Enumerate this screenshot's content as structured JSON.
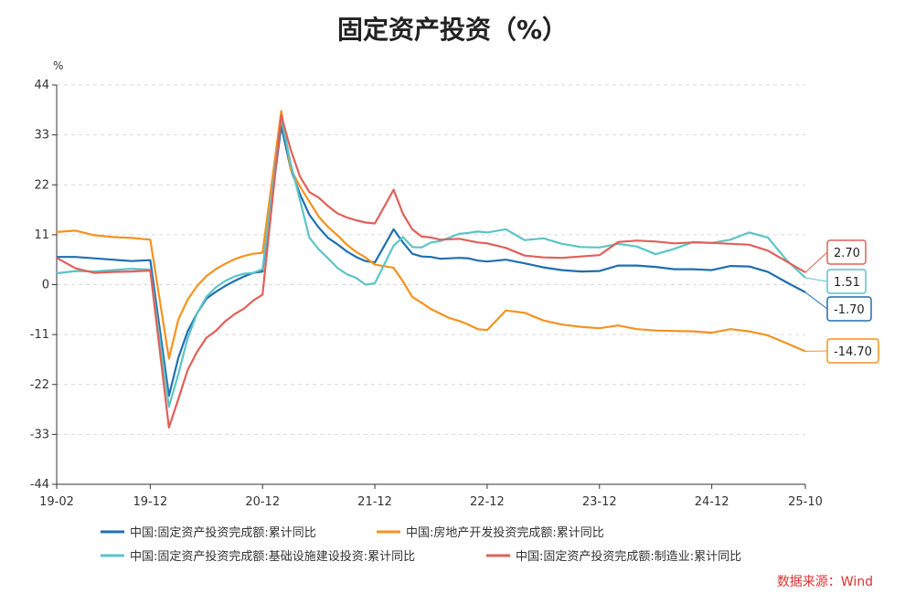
{
  "chart_data": {
    "type": "line",
    "title": "固定资产投资（%）",
    "ylabel": "%",
    "ylim": [
      -44,
      44
    ],
    "yticks": [
      44,
      33,
      22,
      11,
      0,
      -11,
      -22,
      -33,
      -44
    ],
    "x_tick_labels": [
      "19-02",
      "19-12",
      "20-12",
      "21-12",
      "22-12",
      "23-12",
      "24-12",
      "25-10"
    ],
    "x_start": "2019-02",
    "x_end": "2025-10",
    "grid": "horizontal-dashed",
    "legend_position": "bottom",
    "source": "数据来源：Wind",
    "series": [
      {
        "name": "中国:固定资产投资完成额:累计同比",
        "color": "#1f6fb2",
        "end_label": "-1.70",
        "points": [
          [
            "2019-02",
            6.1
          ],
          [
            "2019-04",
            6.1
          ],
          [
            "2019-06",
            5.8
          ],
          [
            "2019-08",
            5.5
          ],
          [
            "2019-10",
            5.2
          ],
          [
            "2019-12",
            5.4
          ],
          [
            "2020-02",
            -24.5
          ],
          [
            "2020-03",
            -16.1
          ],
          [
            "2020-04",
            -10.3
          ],
          [
            "2020-05",
            -6.3
          ],
          [
            "2020-06",
            -3.1
          ],
          [
            "2020-07",
            -1.6
          ],
          [
            "2020-08",
            -0.3
          ],
          [
            "2020-09",
            0.8
          ],
          [
            "2020-10",
            1.8
          ],
          [
            "2020-11",
            2.6
          ],
          [
            "2020-12",
            2.9
          ],
          [
            "2021-02",
            35.0
          ],
          [
            "2021-03",
            25.6
          ],
          [
            "2021-04",
            19.9
          ],
          [
            "2021-05",
            15.4
          ],
          [
            "2021-06",
            12.6
          ],
          [
            "2021-07",
            10.3
          ],
          [
            "2021-08",
            8.9
          ],
          [
            "2021-09",
            7.3
          ],
          [
            "2021-10",
            6.1
          ],
          [
            "2021-11",
            5.2
          ],
          [
            "2021-12",
            4.9
          ],
          [
            "2022-02",
            12.2
          ],
          [
            "2022-03",
            9.3
          ],
          [
            "2022-04",
            6.8
          ],
          [
            "2022-05",
            6.2
          ],
          [
            "2022-06",
            6.1
          ],
          [
            "2022-07",
            5.7
          ],
          [
            "2022-08",
            5.8
          ],
          [
            "2022-09",
            5.9
          ],
          [
            "2022-10",
            5.8
          ],
          [
            "2022-11",
            5.3
          ],
          [
            "2022-12",
            5.1
          ],
          [
            "2023-02",
            5.5
          ],
          [
            "2023-04",
            4.7
          ],
          [
            "2023-06",
            3.8
          ],
          [
            "2023-08",
            3.2
          ],
          [
            "2023-10",
            2.9
          ],
          [
            "2023-12",
            3.0
          ],
          [
            "2024-02",
            4.2
          ],
          [
            "2024-04",
            4.2
          ],
          [
            "2024-06",
            3.9
          ],
          [
            "2024-08",
            3.4
          ],
          [
            "2024-10",
            3.4
          ],
          [
            "2024-12",
            3.2
          ],
          [
            "2025-02",
            4.1
          ],
          [
            "2025-04",
            4.0
          ],
          [
            "2025-06",
            2.8
          ],
          [
            "2025-08",
            0.5
          ],
          [
            "2025-10",
            -1.7
          ]
        ]
      },
      {
        "name": "中国:房地产开发投资完成额:累计同比",
        "color": "#f5921e",
        "end_label": "-14.70",
        "points": [
          [
            "2019-02",
            11.6
          ],
          [
            "2019-04",
            11.9
          ],
          [
            "2019-06",
            10.9
          ],
          [
            "2019-08",
            10.5
          ],
          [
            "2019-10",
            10.3
          ],
          [
            "2019-12",
            9.9
          ],
          [
            "2020-02",
            -16.3
          ],
          [
            "2020-03",
            -7.7
          ],
          [
            "2020-04",
            -3.3
          ],
          [
            "2020-05",
            -0.3
          ],
          [
            "2020-06",
            1.9
          ],
          [
            "2020-07",
            3.4
          ],
          [
            "2020-08",
            4.6
          ],
          [
            "2020-09",
            5.6
          ],
          [
            "2020-10",
            6.3
          ],
          [
            "2020-11",
            6.8
          ],
          [
            "2020-12",
            7.0
          ],
          [
            "2021-02",
            38.3
          ],
          [
            "2021-03",
            25.6
          ],
          [
            "2021-04",
            21.6
          ],
          [
            "2021-05",
            18.3
          ],
          [
            "2021-06",
            15.0
          ],
          [
            "2021-07",
            12.7
          ],
          [
            "2021-08",
            10.9
          ],
          [
            "2021-09",
            8.8
          ],
          [
            "2021-10",
            7.2
          ],
          [
            "2021-11",
            6.0
          ],
          [
            "2021-12",
            4.4
          ],
          [
            "2022-02",
            3.7
          ],
          [
            "2022-03",
            0.7
          ],
          [
            "2022-04",
            -2.7
          ],
          [
            "2022-05",
            -4.0
          ],
          [
            "2022-06",
            -5.4
          ],
          [
            "2022-07",
            -6.4
          ],
          [
            "2022-08",
            -7.4
          ],
          [
            "2022-09",
            -8.0
          ],
          [
            "2022-10",
            -8.8
          ],
          [
            "2022-11",
            -9.8
          ],
          [
            "2022-12",
            -10.0
          ],
          [
            "2023-02",
            -5.7
          ],
          [
            "2023-04",
            -6.2
          ],
          [
            "2023-06",
            -7.9
          ],
          [
            "2023-08",
            -8.8
          ],
          [
            "2023-10",
            -9.3
          ],
          [
            "2023-12",
            -9.6
          ],
          [
            "2024-02",
            -9.0
          ],
          [
            "2024-04",
            -9.8
          ],
          [
            "2024-06",
            -10.1
          ],
          [
            "2024-08",
            -10.2
          ],
          [
            "2024-10",
            -10.3
          ],
          [
            "2024-12",
            -10.6
          ],
          [
            "2025-02",
            -9.8
          ],
          [
            "2025-04",
            -10.3
          ],
          [
            "2025-06",
            -11.2
          ],
          [
            "2025-08",
            -12.9
          ],
          [
            "2025-10",
            -14.7
          ]
        ]
      },
      {
        "name": "中国:固定资产投资完成额:基础设施建设投资:累计同比",
        "color": "#5cc4c6",
        "end_label": "1.51",
        "points": [
          [
            "2019-02",
            2.5
          ],
          [
            "2019-04",
            3.0
          ],
          [
            "2019-06",
            2.9
          ],
          [
            "2019-08",
            3.2
          ],
          [
            "2019-10",
            3.5
          ],
          [
            "2019-12",
            3.3
          ],
          [
            "2020-02",
            -26.9
          ],
          [
            "2020-03",
            -19.7
          ],
          [
            "2020-04",
            -11.8
          ],
          [
            "2020-05",
            -6.3
          ],
          [
            "2020-06",
            -2.7
          ],
          [
            "2020-07",
            -0.6
          ],
          [
            "2020-08",
            0.8
          ],
          [
            "2020-09",
            1.8
          ],
          [
            "2020-10",
            2.4
          ],
          [
            "2020-11",
            2.6
          ],
          [
            "2020-12",
            3.4
          ],
          [
            "2021-02",
            36.6
          ],
          [
            "2021-03",
            26.8
          ],
          [
            "2021-04",
            18.6
          ],
          [
            "2021-05",
            10.4
          ],
          [
            "2021-06",
            7.8
          ],
          [
            "2021-07",
            5.8
          ],
          [
            "2021-08",
            3.7
          ],
          [
            "2021-09",
            2.3
          ],
          [
            "2021-10",
            1.5
          ],
          [
            "2021-11",
            0.0
          ],
          [
            "2021-12",
            0.3
          ],
          [
            "2022-02",
            8.6
          ],
          [
            "2022-03",
            10.5
          ],
          [
            "2022-04",
            8.3
          ],
          [
            "2022-05",
            8.2
          ],
          [
            "2022-06",
            9.3
          ],
          [
            "2022-07",
            9.6
          ],
          [
            "2022-08",
            10.4
          ],
          [
            "2022-09",
            11.2
          ],
          [
            "2022-10",
            11.4
          ],
          [
            "2022-11",
            11.7
          ],
          [
            "2022-12",
            11.5
          ],
          [
            "2023-02",
            12.2
          ],
          [
            "2023-04",
            9.8
          ],
          [
            "2023-06",
            10.2
          ],
          [
            "2023-08",
            9.0
          ],
          [
            "2023-10",
            8.3
          ],
          [
            "2023-12",
            8.2
          ],
          [
            "2024-02",
            9.0
          ],
          [
            "2024-04",
            8.4
          ],
          [
            "2024-06",
            6.7
          ],
          [
            "2024-08",
            7.9
          ],
          [
            "2024-10",
            9.4
          ],
          [
            "2024-12",
            9.2
          ],
          [
            "2025-02",
            9.9
          ],
          [
            "2025-04",
            11.5
          ],
          [
            "2025-06",
            10.4
          ],
          [
            "2025-08",
            5.4
          ],
          [
            "2025-10",
            1.51
          ]
        ]
      },
      {
        "name": "中国:固定资产投资完成额:制造业:累计同比",
        "color": "#e0605a",
        "end_label": "2.70",
        "points": [
          [
            "2019-02",
            5.9
          ],
          [
            "2019-04",
            3.6
          ],
          [
            "2019-06",
            2.6
          ],
          [
            "2019-08",
            2.8
          ],
          [
            "2019-10",
            2.9
          ],
          [
            "2019-12",
            3.1
          ],
          [
            "2020-02",
            -31.5
          ],
          [
            "2020-03",
            -25.2
          ],
          [
            "2020-04",
            -18.8
          ],
          [
            "2020-05",
            -14.8
          ],
          [
            "2020-06",
            -11.7
          ],
          [
            "2020-07",
            -10.2
          ],
          [
            "2020-08",
            -8.1
          ],
          [
            "2020-09",
            -6.5
          ],
          [
            "2020-10",
            -5.3
          ],
          [
            "2020-11",
            -3.5
          ],
          [
            "2020-12",
            -2.2
          ],
          [
            "2021-02",
            37.3
          ],
          [
            "2021-03",
            29.8
          ],
          [
            "2021-04",
            23.8
          ],
          [
            "2021-05",
            20.4
          ],
          [
            "2021-06",
            19.2
          ],
          [
            "2021-07",
            17.3
          ],
          [
            "2021-08",
            15.7
          ],
          [
            "2021-09",
            14.8
          ],
          [
            "2021-10",
            14.2
          ],
          [
            "2021-11",
            13.7
          ],
          [
            "2021-12",
            13.5
          ],
          [
            "2022-02",
            20.9
          ],
          [
            "2022-03",
            15.6
          ],
          [
            "2022-04",
            12.2
          ],
          [
            "2022-05",
            10.6
          ],
          [
            "2022-06",
            10.4
          ],
          [
            "2022-07",
            9.9
          ],
          [
            "2022-08",
            10.0
          ],
          [
            "2022-09",
            10.1
          ],
          [
            "2022-10",
            9.7
          ],
          [
            "2022-11",
            9.3
          ],
          [
            "2022-12",
            9.1
          ],
          [
            "2023-02",
            8.1
          ],
          [
            "2023-04",
            6.4
          ],
          [
            "2023-06",
            6.0
          ],
          [
            "2023-08",
            5.9
          ],
          [
            "2023-10",
            6.2
          ],
          [
            "2023-12",
            6.5
          ],
          [
            "2024-02",
            9.4
          ],
          [
            "2024-04",
            9.7
          ],
          [
            "2024-06",
            9.5
          ],
          [
            "2024-08",
            9.1
          ],
          [
            "2024-10",
            9.3
          ],
          [
            "2024-12",
            9.2
          ],
          [
            "2025-02",
            9.0
          ],
          [
            "2025-04",
            8.8
          ],
          [
            "2025-06",
            7.5
          ],
          [
            "2025-08",
            5.1
          ],
          [
            "2025-10",
            2.7
          ]
        ]
      }
    ]
  }
}
